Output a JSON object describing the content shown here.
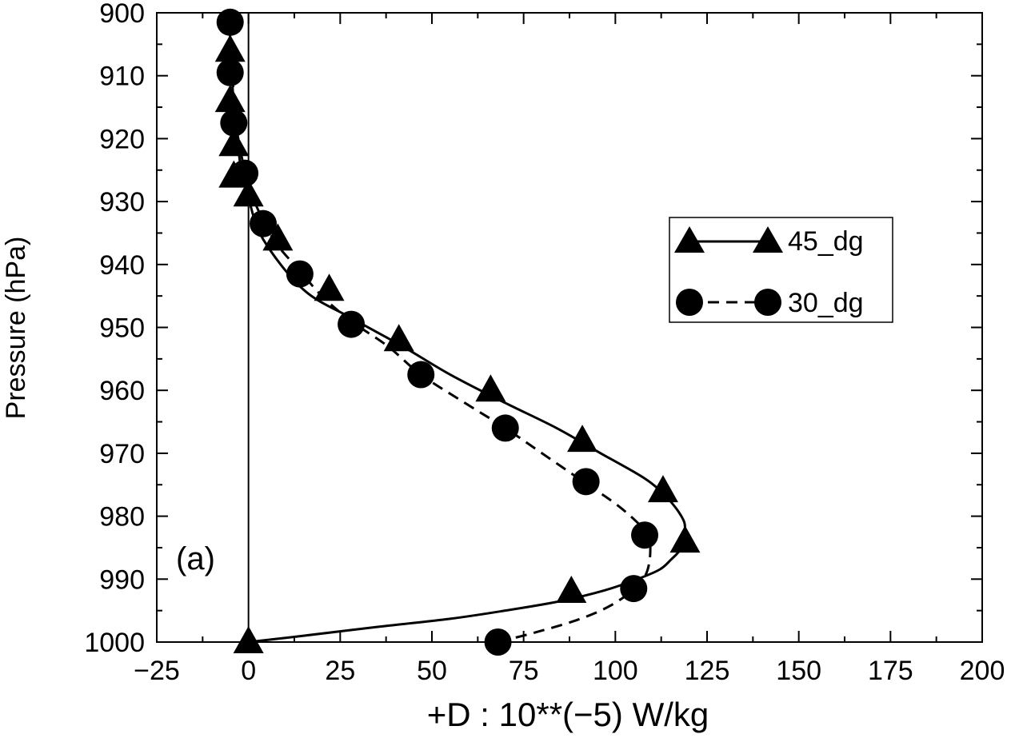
{
  "chart_data": {
    "type": "line",
    "title": "",
    "panel_label": "(a)",
    "xlabel": "+D : 10**(−5) W/kg",
    "ylabel": "Pressure (hPa)",
    "xlim": [
      -25,
      200
    ],
    "ylim": [
      900,
      1000
    ],
    "y_inverted": true,
    "x_ticks": [
      -25,
      0,
      25,
      50,
      75,
      100,
      125,
      150,
      175,
      200
    ],
    "x_tick_labels": [
      "−25",
      "0",
      "25",
      "50",
      "75",
      "100",
      "125",
      "150",
      "175",
      "200"
    ],
    "y_ticks": [
      900,
      910,
      920,
      930,
      940,
      950,
      960,
      970,
      980,
      990,
      1000
    ],
    "y_tick_labels": [
      "900",
      "910",
      "920",
      "930",
      "940",
      "950",
      "960",
      "970",
      "980",
      "990",
      "1000"
    ],
    "reference_line_x": 0,
    "legend": {
      "position": "right",
      "entries": [
        "45_dg",
        "30_dg"
      ]
    },
    "series": [
      {
        "name": "45_dg",
        "line_style": "solid",
        "marker": "triangle",
        "curve": {
          "x": [
            0,
            15,
            35,
            55,
            70,
            85,
            97,
            106,
            112,
            115,
            118,
            119,
            118,
            114,
            108,
            96,
            84,
            70,
            55,
            42,
            28,
            15,
            4,
            0,
            -2,
            -3,
            -4,
            -4.5,
            -5,
            -5
          ],
          "y": [
            1000,
            999,
            997.6,
            996.3,
            995,
            993.5,
            991.8,
            990,
            988.5,
            987,
            985,
            982,
            980,
            977,
            974,
            970,
            966,
            962,
            957.5,
            953,
            948.5,
            944,
            936,
            929.5,
            925,
            920,
            915,
            910,
            906,
            903
          ]
        },
        "markers": {
          "x": [
            -5,
            -5,
            -4,
            -4,
            0,
            8,
            22,
            41,
            66,
            91,
            113,
            119,
            88,
            0
          ],
          "y": [
            906,
            914,
            921,
            926,
            929,
            936,
            944,
            952,
            960,
            968,
            976,
            984,
            992,
            1000
          ]
        }
      },
      {
        "name": "30_dg",
        "line_style": "dashed",
        "marker": "circle",
        "curve": {
          "x": [
            68,
            78,
            88,
            96,
            102,
            106,
            108.5,
            109.5,
            109,
            106,
            100,
            90,
            80,
            70,
            59,
            47,
            38,
            28,
            20,
            14,
            8,
            4,
            1,
            -1,
            -2.5,
            -3.5,
            -4,
            -4.5,
            -5
          ],
          "y": [
            1000,
            998.5,
            996.8,
            995,
            993,
            991,
            989,
            986,
            983,
            981,
            978,
            974,
            970,
            966,
            962,
            957.5,
            953,
            949,
            945,
            941,
            937,
            933,
            929,
            925,
            921,
            917,
            913,
            909,
            903
          ]
        },
        "markers": {
          "x": [
            -5,
            -5,
            -4,
            -1,
            4,
            14,
            28,
            47,
            70,
            92,
            108,
            105,
            68
          ],
          "y": [
            901.5,
            909.5,
            917.5,
            925.5,
            933.5,
            941.5,
            949.5,
            957.5,
            966,
            974.5,
            983,
            991.5,
            1000
          ]
        }
      }
    ]
  }
}
